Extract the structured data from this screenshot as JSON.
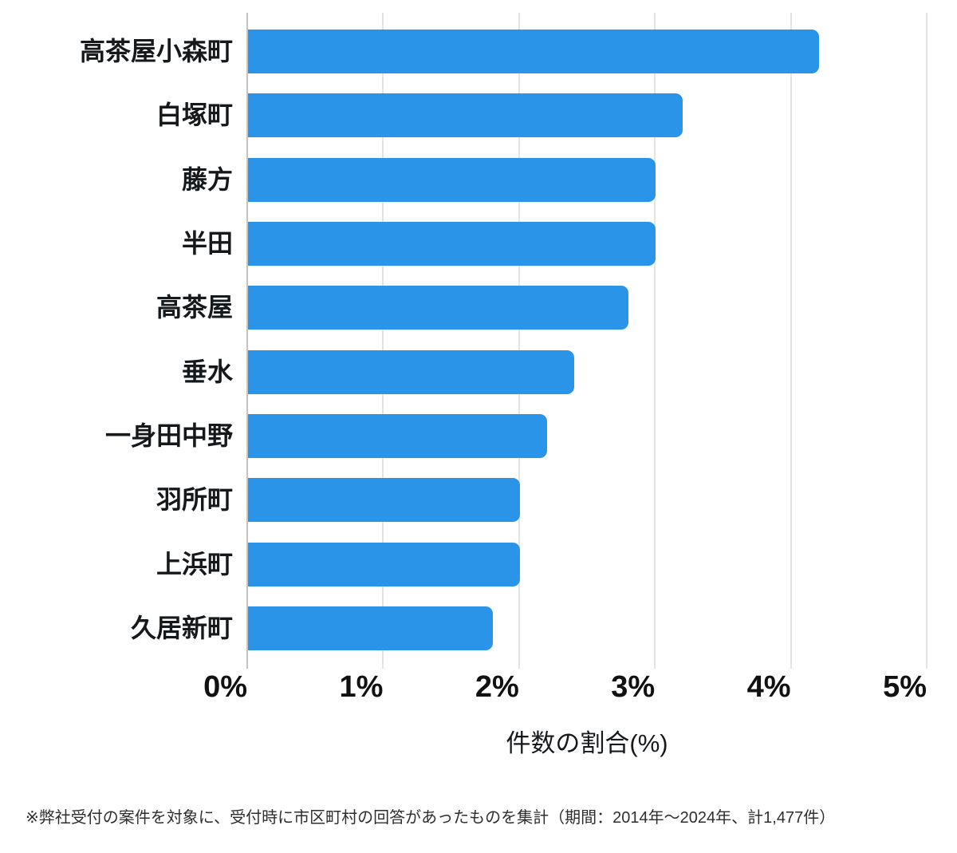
{
  "chart_data": {
    "type": "bar",
    "orientation": "horizontal",
    "categories": [
      "高茶屋小森町",
      "白塚町",
      "藤方",
      "半田",
      "高茶屋",
      "垂水",
      "一身田中野",
      "羽所町",
      "上浜町",
      "久居新町"
    ],
    "values": [
      4.2,
      3.2,
      3.0,
      3.0,
      2.8,
      2.4,
      2.2,
      2.0,
      2.0,
      1.8
    ],
    "title": "",
    "xlabel": "件数の割合(%)",
    "ylabel": "",
    "xlim": [
      0,
      5
    ],
    "xticks": [
      "0%",
      "1%",
      "2%",
      "3%",
      "4%",
      "5%"
    ],
    "grid": true,
    "legend": false,
    "bar_color": "#2a94e9",
    "gridline_color": "#e4e4e4",
    "axisline_color": "#c4c4c4"
  },
  "footnote": "※弊社受付の案件を対象に、受付時に市区町村の回答があったものを集計（期間：2014年〜2024年、計1,477件）"
}
